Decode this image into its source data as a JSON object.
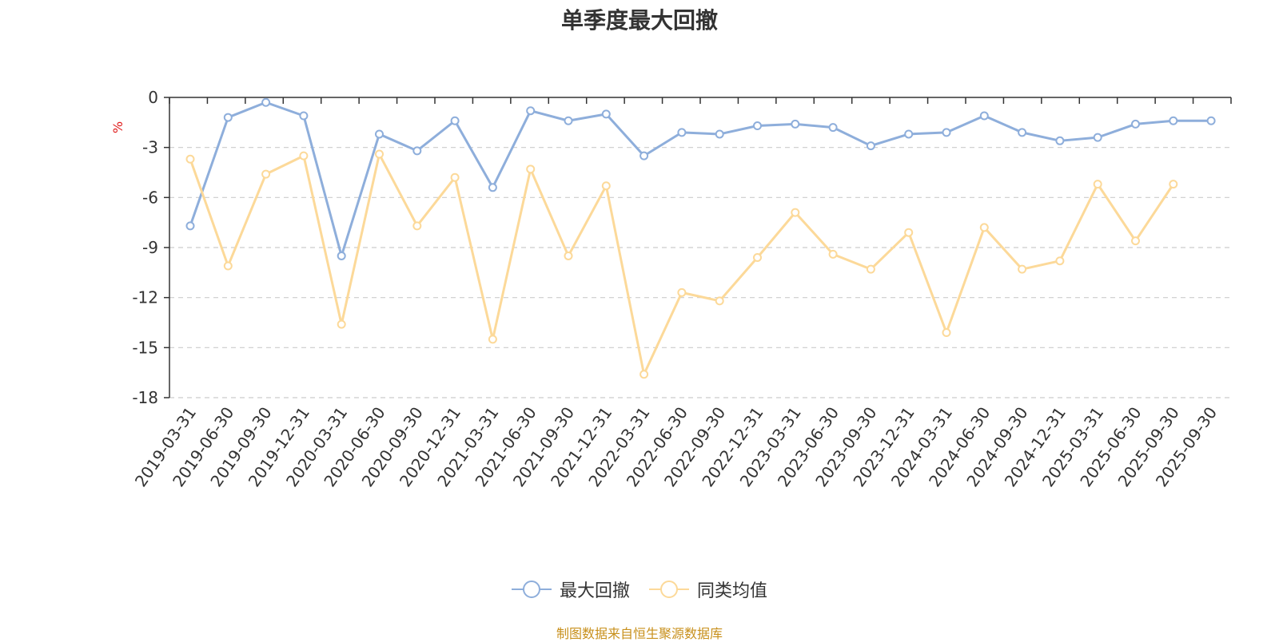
{
  "chart_data": {
    "type": "line",
    "title": "单季度最大回撤",
    "ylabel": "%",
    "ylim": [
      -18,
      0
    ],
    "yticks": [
      0,
      -3,
      -6,
      -9,
      -12,
      -15,
      -18
    ],
    "grid": true,
    "legend_position": "bottom",
    "categories": [
      "2019-03-31",
      "2019-06-30",
      "2019-09-30",
      "2019-12-31",
      "2020-03-31",
      "2020-06-30",
      "2020-09-30",
      "2020-12-31",
      "2021-03-31",
      "2021-06-30",
      "2021-09-30",
      "2021-12-31",
      "2022-03-31",
      "2022-06-30",
      "2022-09-30",
      "2022-12-31",
      "2023-03-31",
      "2023-06-30",
      "2023-09-30",
      "2023-12-31",
      "2024-03-31",
      "2024-06-30",
      "2024-09-30",
      "2024-12-31",
      "2025-03-31",
      "2025-06-30",
      "2025-09-30",
      "2025-09-30"
    ],
    "series": [
      {
        "name": "最大回撤",
        "color": "#8eaedb",
        "values": [
          -7.7,
          -1.2,
          -0.3,
          -1.1,
          -9.5,
          -2.2,
          -3.2,
          -1.4,
          -5.4,
          -0.8,
          -1.4,
          -1.0,
          -3.5,
          -2.1,
          -2.2,
          -1.7,
          -1.6,
          -1.8,
          -2.9,
          -2.2,
          -2.1,
          -1.1,
          -2.1,
          -2.6,
          -2.4,
          -1.6,
          -1.4,
          -1.4
        ]
      },
      {
        "name": "同类均值",
        "color": "#fcd999",
        "values": [
          -3.7,
          -10.1,
          -4.6,
          -3.5,
          -13.6,
          -3.4,
          -7.7,
          -4.8,
          -14.5,
          -4.3,
          -9.5,
          -5.3,
          -16.6,
          -11.7,
          -12.2,
          -9.6,
          -6.9,
          -9.4,
          -10.3,
          -8.1,
          -14.1,
          -7.8,
          -10.3,
          -9.8,
          -5.2,
          -8.6,
          -5.2,
          null
        ]
      }
    ]
  },
  "footer": {
    "source": "制图数据来自恒生聚源数据库"
  }
}
